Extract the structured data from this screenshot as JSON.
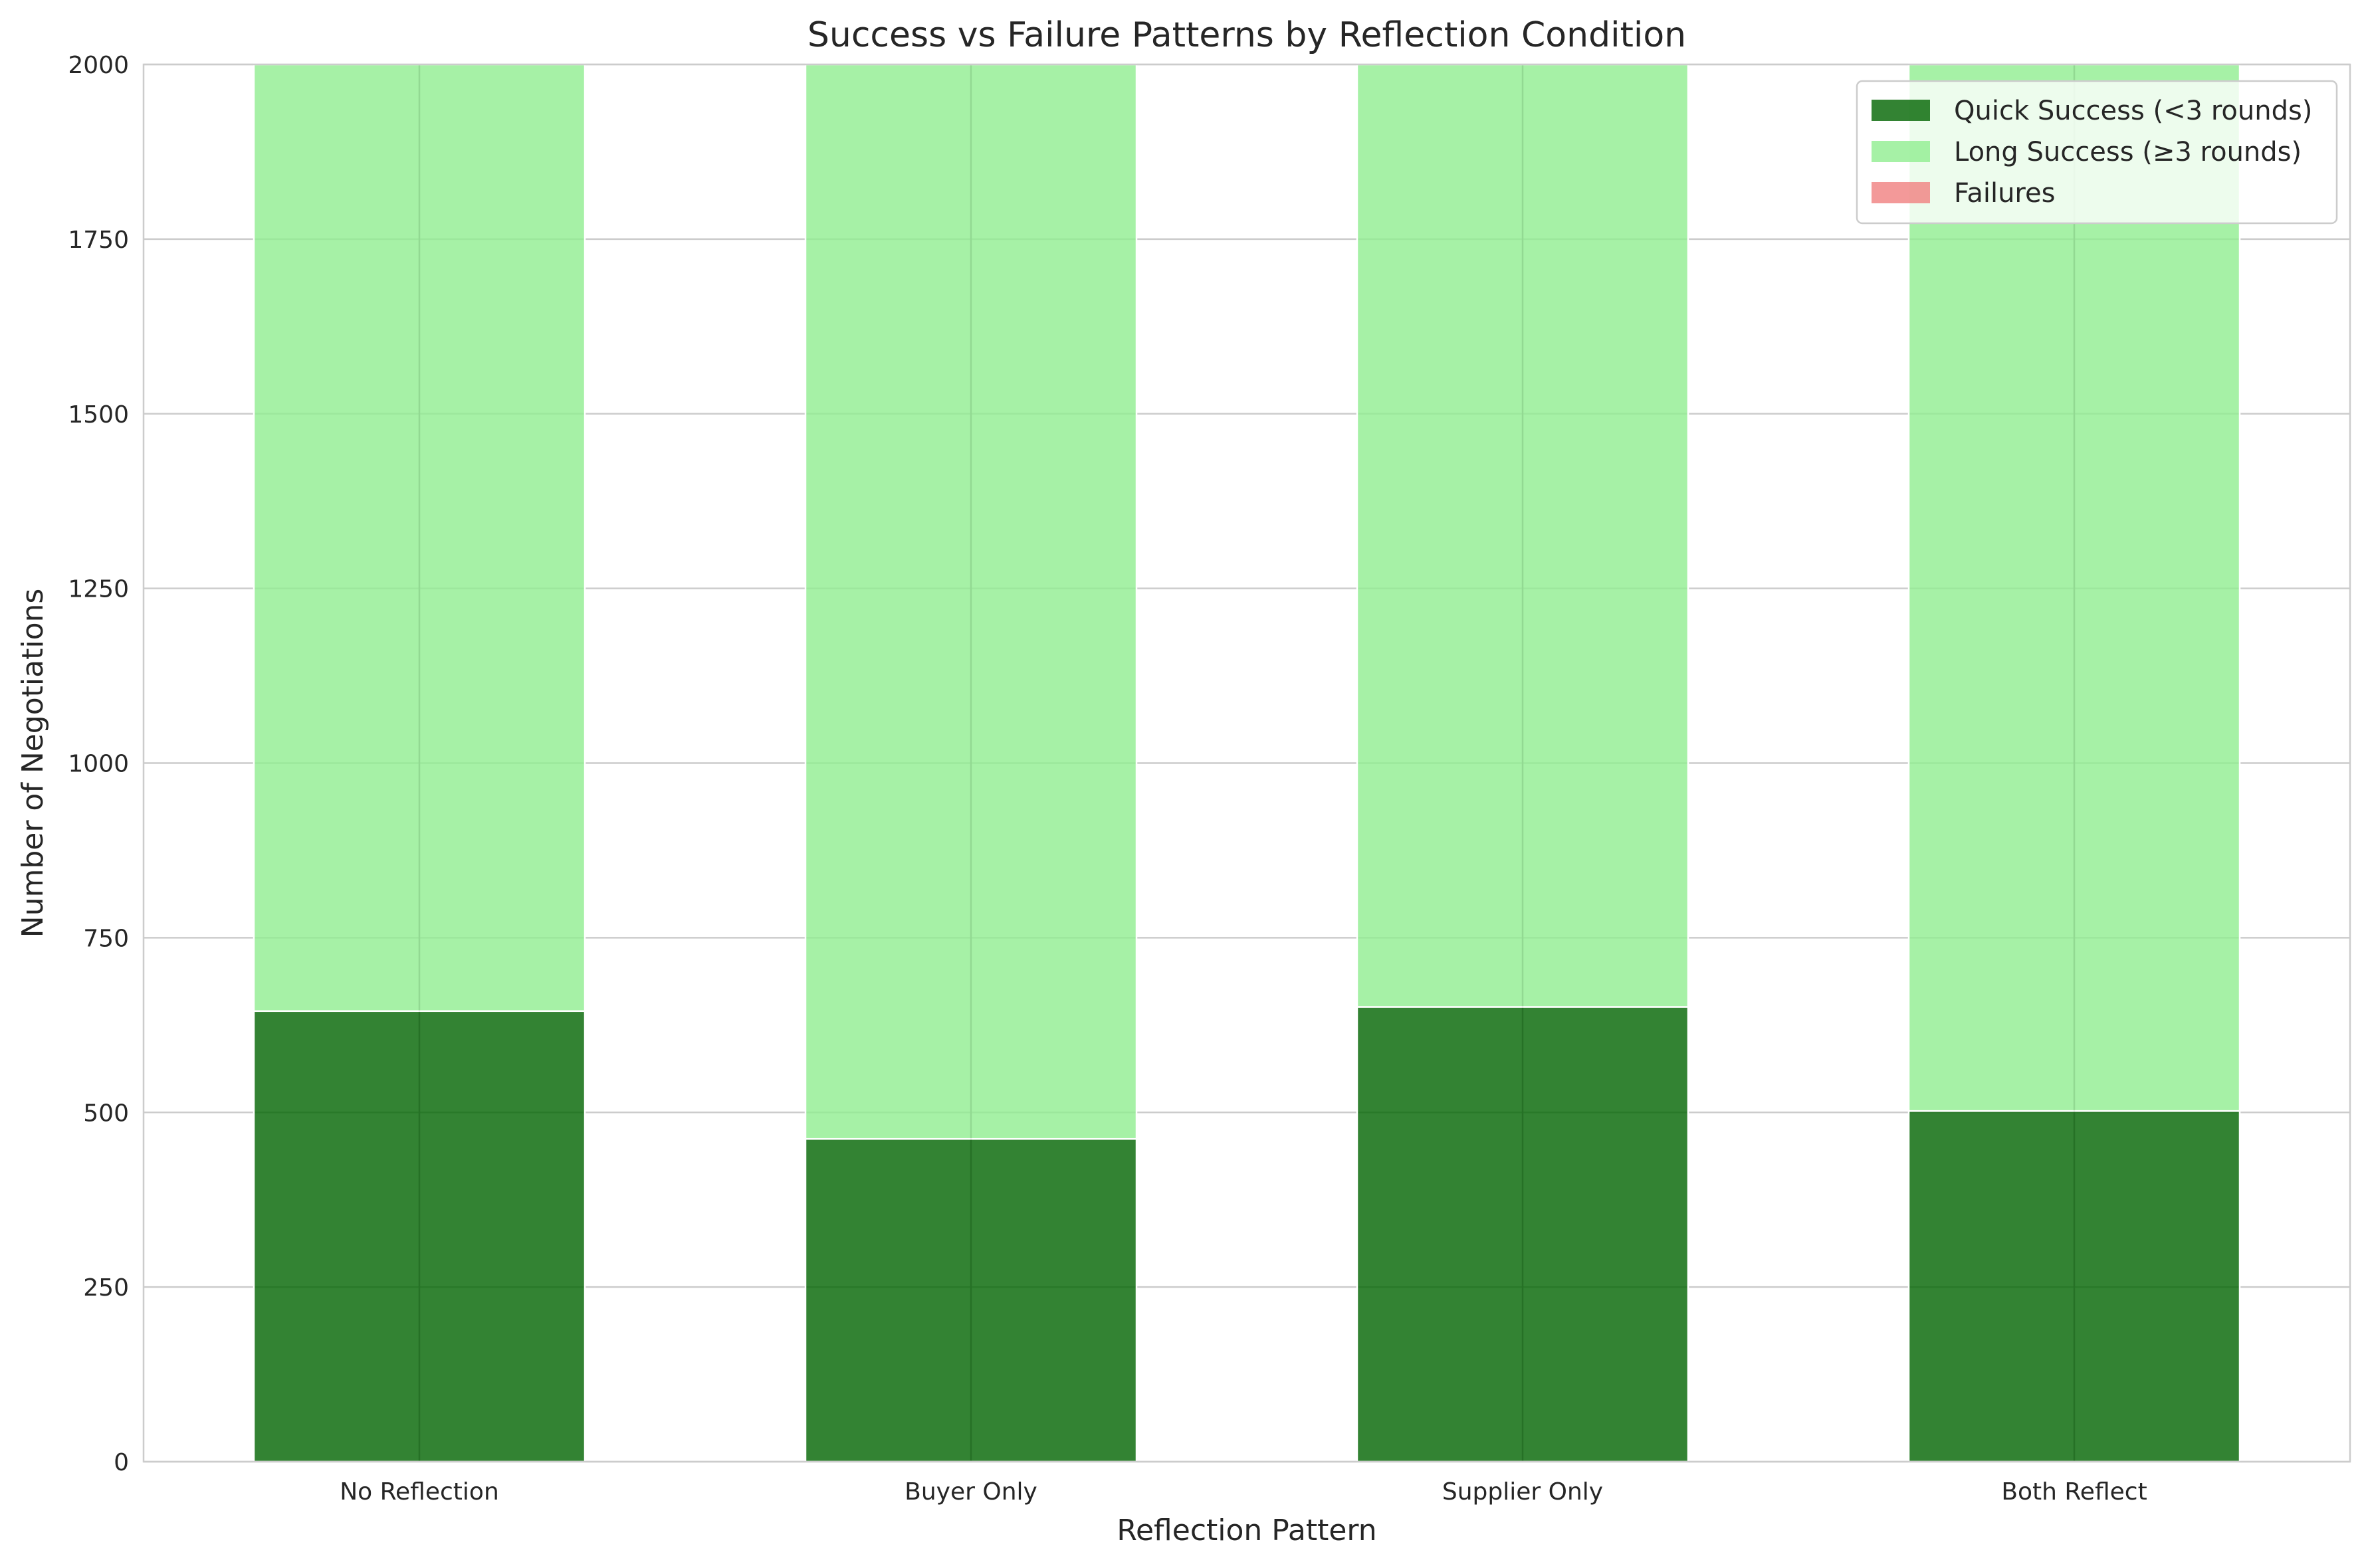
{
  "chart_data": {
    "type": "bar",
    "stacked": true,
    "title": "Success vs Failure Patterns by Reflection Condition",
    "xlabel": "Reflection Pattern",
    "ylabel": "Number of Negotiations",
    "categories": [
      "No Reflection",
      "Buyer Only",
      "Supplier Only",
      "Both Reflect"
    ],
    "ylim": [
      0,
      2000
    ],
    "yticks": [
      "0",
      "250",
      "500",
      "750",
      "1000",
      "1250",
      "1500",
      "1750",
      "2000"
    ],
    "ytick_values": [
      0,
      250,
      500,
      750,
      1000,
      1250,
      1500,
      1750,
      2000
    ],
    "grid": true,
    "legend_position": "top-right",
    "series": [
      {
        "name": "Quick Success (<3 rounds)",
        "color": "#006400",
        "values": [
          645,
          462,
          651,
          502
        ]
      },
      {
        "name": "Long Success (≥3 rounds)",
        "color": "#90EE90",
        "values": [
          1355,
          1538,
          1349,
          1498
        ]
      },
      {
        "name": "Failures",
        "color": "#F08080",
        "values": [
          0,
          0,
          0,
          0
        ]
      }
    ]
  }
}
